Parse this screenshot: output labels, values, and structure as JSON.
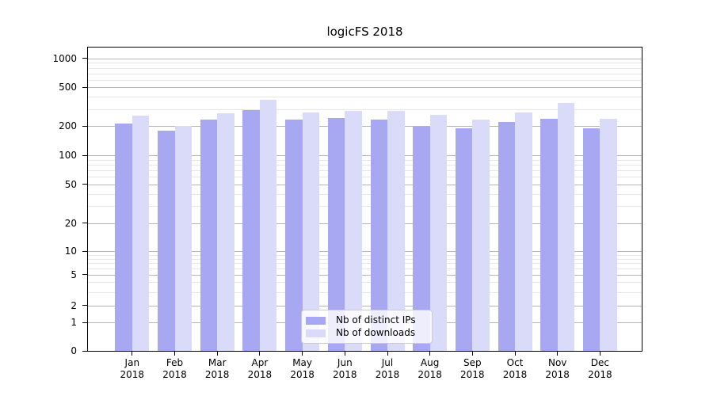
{
  "chart_data": {
    "type": "bar",
    "title": "logicFS 2018",
    "categories": [
      "Jan",
      "Feb",
      "Mar",
      "Apr",
      "May",
      "Jun",
      "Jul",
      "Aug",
      "Sep",
      "Oct",
      "Nov",
      "Dec"
    ],
    "category_year": "2018",
    "series": [
      {
        "name": "Nb of distinct IPs",
        "color": "#a8a8f2",
        "values": [
          211,
          180,
          232,
          290,
          231,
          244,
          235,
          196,
          190,
          221,
          236,
          191
        ]
      },
      {
        "name": "Nb of downloads",
        "color": "#dadaf9",
        "values": [
          254,
          202,
          269,
          375,
          274,
          288,
          287,
          259,
          235,
          276,
          343,
          239
        ]
      }
    ],
    "yscale": "symlog",
    "y_ticks": [
      0,
      1,
      2,
      5,
      10,
      20,
      50,
      100,
      200,
      500,
      1000
    ],
    "y_minor_gridlines": [
      3,
      4,
      6,
      7,
      8,
      9,
      30,
      40,
      60,
      70,
      80,
      90,
      300,
      400,
      600,
      700,
      800,
      900
    ],
    "scale_anchors": [
      [
        0,
        1.0
      ],
      [
        1,
        0.9071
      ],
      [
        2,
        0.8503
      ],
      [
        5,
        0.749
      ],
      [
        10,
        0.671
      ],
      [
        20,
        0.5782
      ],
      [
        50,
        0.4509
      ],
      [
        100,
        0.356
      ],
      [
        200,
        0.2586
      ],
      [
        500,
        0.1312
      ],
      [
        1000,
        0.0359
      ]
    ],
    "xlim_units": [
      -1.04,
      11.98
    ],
    "bar_width_units": 0.4,
    "grid": true,
    "legend": {
      "position": "lower center"
    }
  },
  "colors": {
    "major_grid": "#b5b5b5",
    "minor_grid": "#e6e6e6",
    "spine": "#000000",
    "text": "#000000",
    "legend_border": "#cccccc"
  }
}
